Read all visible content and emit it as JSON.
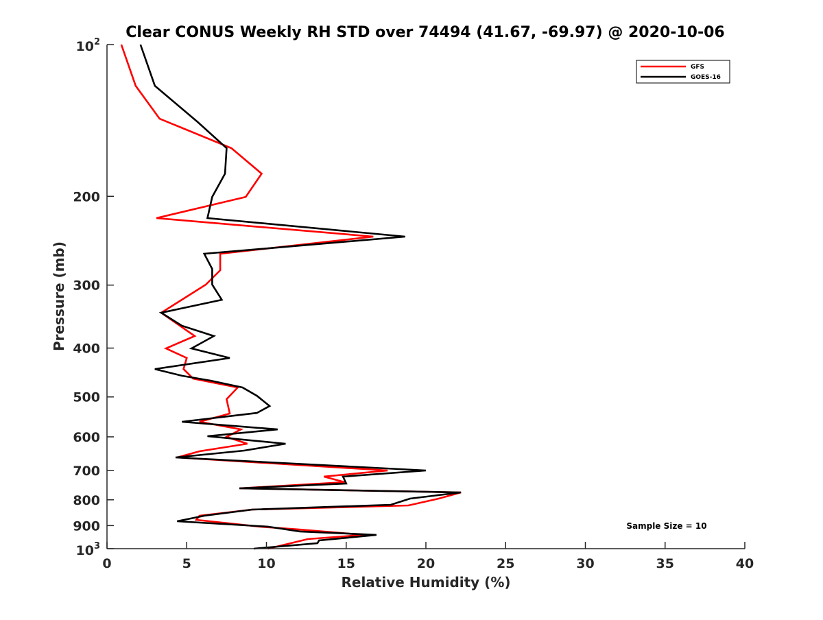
{
  "chart_data": {
    "type": "line",
    "title": "Clear CONUS Weekly RH STD over 74494 (41.67, -69.97) @ 2020-10-06",
    "xlabel": "Relative Humidity (%)",
    "ylabel": "Pressure (mb)",
    "xlim": [
      0,
      40
    ],
    "ylim": [
      100,
      1000
    ],
    "yscale": "log",
    "y_reversed": true,
    "x_ticks": [
      "0",
      "5",
      "10",
      "15",
      "20",
      "25",
      "30",
      "35",
      "40"
    ],
    "x_tick_values": [
      0,
      5,
      10,
      15,
      20,
      25,
      30,
      35,
      40
    ],
    "y_ticks": [
      {
        "value": 100,
        "base": "10",
        "exp": "2"
      },
      {
        "value": 200,
        "label": "200"
      },
      {
        "value": 300,
        "label": "300"
      },
      {
        "value": 400,
        "label": "400"
      },
      {
        "value": 500,
        "label": "500"
      },
      {
        "value": 600,
        "label": "600"
      },
      {
        "value": 700,
        "label": "700"
      },
      {
        "value": 800,
        "label": "800"
      },
      {
        "value": 900,
        "label": "900"
      },
      {
        "value": 1000,
        "base": "10",
        "exp": "3"
      }
    ],
    "grid": false,
    "legend_position": "top-right",
    "annotation": "Sample Size = 10",
    "series": [
      {
        "name": "GFS",
        "color": "#ff0000",
        "pressure": [
          100,
          120.7,
          140.3,
          160.5,
          180.3,
          200.5,
          220.9,
          240.4,
          260,
          280.3,
          299.4,
          340.4,
          378.7,
          400.6,
          418.6,
          440.2,
          459.9,
          479,
          505.2,
          539.5,
          560.2,
          580,
          600.1,
          619.2,
          641,
          659.2,
          699.6,
          719.5,
          737.9,
          759,
          773.4,
          795.5,
          820.9,
          836.4,
          860.4,
          876.7,
          904.4,
          915.8,
          939,
          957,
          1000
        ],
        "rh": [
          0.9,
          1.8,
          3.3,
          7.8,
          9.7,
          8.7,
          3.1,
          16.7,
          7.1,
          7.1,
          6.2,
          3.4,
          5.5,
          3.7,
          5.0,
          4.8,
          5.4,
          8.2,
          7.5,
          7.7,
          5.8,
          8.4,
          7.5,
          8.8,
          5.8,
          4.4,
          17.6,
          13.6,
          14.9,
          8.3,
          22.2,
          20.8,
          18.9,
          9.1,
          5.8,
          5.6,
          9.6,
          12.0,
          16.1,
          12.6,
          10.1
        ]
      },
      {
        "name": "GOES-16",
        "color": "#000000",
        "pressure": [
          100,
          120.7,
          142.5,
          160.5,
          180.3,
          200.5,
          220.9,
          240.4,
          260,
          278.6,
          299.4,
          320.8,
          340.4,
          361.3,
          378.7,
          400.6,
          418.6,
          440.2,
          454,
          464.2,
          479,
          497.4,
          521.2,
          537.9,
          560.2,
          580,
          598.3,
          619.2,
          638.9,
          659.2,
          699.6,
          719.5,
          742.5,
          759,
          773.4,
          795.5,
          818.3,
          836.4,
          860.4,
          882.1,
          904.4,
          924.5,
          939,
          963,
          975.4,
          1000
        ],
        "rh": [
          2.1,
          3.0,
          5.7,
          7.5,
          7.4,
          6.6,
          6.3,
          18.7,
          6.1,
          6.6,
          6.6,
          7.2,
          3.4,
          4.7,
          6.7,
          5.3,
          7.7,
          3.0,
          4.7,
          6.5,
          8.5,
          9.4,
          10.2,
          9.4,
          4.7,
          10.7,
          6.3,
          11.2,
          8.6,
          4.3,
          20.0,
          14.8,
          15.0,
          8.3,
          22.2,
          19.0,
          17.8,
          9.1,
          6.1,
          4.4,
          10.1,
          12.1,
          16.9,
          13.3,
          13.2,
          9.2
        ]
      }
    ]
  }
}
